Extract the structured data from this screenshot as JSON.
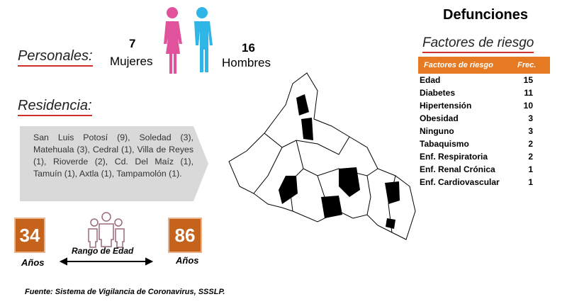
{
  "personales": {
    "title": "Personales:",
    "mujeres": {
      "count": 7,
      "label": "Mujeres"
    },
    "hombres": {
      "count": 16,
      "label": "Hombres"
    }
  },
  "residencia": {
    "title": "Residencia:",
    "text": "San Luis Potosí (9), Soledad (3), Matehuala (3), Cedral (1), Villa de Reyes (1), Rioverde (2), Cd. Del Maíz (1), Tamuín (1), Axtla (1), Tampamolón (1)."
  },
  "edad": {
    "min": 34,
    "min_unit": "Años",
    "label": "Rango de Edad",
    "max": 86,
    "max_unit": "Años"
  },
  "source": "Fuente: Sistema de Vigilancia de Coronavirus, SSSLP.",
  "defunciones": {
    "title": "Defunciones",
    "subtitle": "Factores de riesgo",
    "table": {
      "header": [
        "Factores de riesgo",
        "Frec."
      ],
      "rows": [
        [
          "Edad",
          "15"
        ],
        [
          "Diabetes",
          "11"
        ],
        [
          "Hipertensión",
          "10"
        ],
        [
          "Obesidad",
          "3"
        ],
        [
          "Ninguno",
          "3"
        ],
        [
          "Tabaquismo",
          "2"
        ],
        [
          "Enf.  Respiratoria",
          "2"
        ],
        [
          "Enf. Renal Crónica",
          "1"
        ],
        [
          "Enf. Cardiovascular",
          "1"
        ]
      ]
    }
  }
}
